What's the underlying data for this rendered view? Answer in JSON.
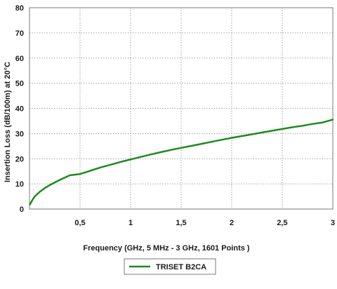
{
  "chart_data": {
    "type": "line",
    "title": "",
    "xlabel": "Frequency (GHz, 5 MHz - 3 GHz, 1601 Points )",
    "ylabel": "Insertion Loss (dB/100m) at 20°C",
    "xlim": [
      0,
      3
    ],
    "ylim": [
      0,
      80
    ],
    "x_ticks": [
      0.5,
      1,
      1.5,
      2,
      2.5,
      3
    ],
    "x_tick_labels": [
      "0,5",
      "1",
      "1,5",
      "2",
      "2,5",
      "3"
    ],
    "y_ticks": [
      0,
      10,
      20,
      30,
      40,
      50,
      60,
      70,
      80
    ],
    "y_tick_labels": [
      "0",
      "10",
      "20",
      "30",
      "40",
      "50",
      "60",
      "70",
      "80"
    ],
    "grid": true,
    "legend_position": "bottom-center",
    "series": [
      {
        "name": "TRISET B2CA",
        "color": "#1f8a1f",
        "x": [
          0.005,
          0.02,
          0.05,
          0.1,
          0.15,
          0.2,
          0.3,
          0.4,
          0.5,
          0.6,
          0.7,
          0.8,
          0.9,
          1.0,
          1.1,
          1.2,
          1.3,
          1.4,
          1.5,
          1.6,
          1.7,
          1.8,
          1.9,
          2.0,
          2.1,
          2.2,
          2.3,
          2.4,
          2.5,
          2.6,
          2.7,
          2.8,
          2.9,
          3.0
        ],
        "y": [
          1.8,
          3.0,
          4.9,
          6.8,
          8.3,
          9.5,
          11.6,
          13.4,
          13.9,
          15.2,
          16.5,
          17.6,
          18.7,
          19.7,
          20.7,
          21.7,
          22.6,
          23.5,
          24.3,
          25.1,
          25.9,
          26.7,
          27.5,
          28.3,
          29.0,
          29.7,
          30.4,
          31.1,
          31.8,
          32.5,
          33.1,
          33.8,
          34.4,
          35.5
        ]
      }
    ]
  }
}
